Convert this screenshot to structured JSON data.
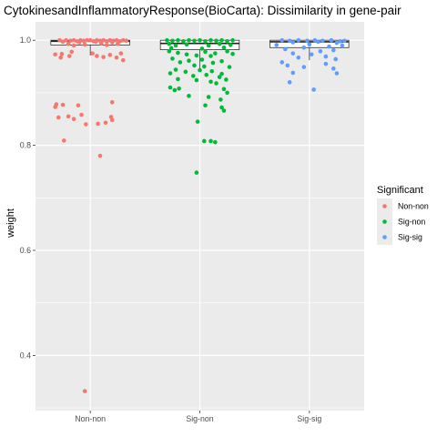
{
  "chart_data": {
    "type": "scatter",
    "title": "CytokinesandInflammatoryResponse(BioCarta): Dissimilarity in gene-pair",
    "xlabel": "",
    "ylabel": "weight",
    "categories": [
      "Non-non",
      "Sig-non",
      "Sig-sig"
    ],
    "ylim": [
      0.295,
      1.035
    ],
    "yticks": [
      0.4,
      0.6,
      0.8,
      1.0
    ],
    "ytick_labels": [
      "0.4",
      "0.6",
      "0.8",
      "1.0"
    ],
    "grid": true,
    "legend": {
      "title": "Significant",
      "placement": "right",
      "entries": [
        "Non-non",
        "Sig-non",
        "Sig-sig"
      ]
    },
    "colors": {
      "Non-non": "#F8766D",
      "Sig-non": "#00BA38",
      "Sig-sig": "#619CFF",
      "panel": "#EBEBEB",
      "grid": "#FFFFFF"
    },
    "boxplots": [
      {
        "category": "Non-non",
        "q1": 0.991,
        "median": 0.998,
        "q3": 1.0,
        "whisker_low": 0.971,
        "whisker_high": 1.0
      },
      {
        "category": "Sig-non",
        "q1": 0.982,
        "median": 0.994,
        "q3": 1.0,
        "whisker_low": 0.946,
        "whisker_high": 1.0
      },
      {
        "category": "Sig-sig",
        "q1": 0.986,
        "median": 0.997,
        "q3": 1.0,
        "whisker_low": 0.962,
        "whisker_high": 1.0
      }
    ],
    "series": [
      {
        "name": "Non-non",
        "points": [
          [
            -0.28,
            1.0
          ],
          [
            -0.22,
            1.0
          ],
          [
            -0.18,
            0.999
          ],
          [
            -0.15,
            1.0
          ],
          [
            -0.12,
            0.998
          ],
          [
            -0.09,
            1.0
          ],
          [
            -0.06,
            0.999
          ],
          [
            -0.03,
            1.0
          ],
          [
            0.0,
            1.0
          ],
          [
            0.03,
            0.998
          ],
          [
            0.06,
            1.0
          ],
          [
            0.09,
            0.999
          ],
          [
            0.12,
            1.0
          ],
          [
            0.15,
            0.998
          ],
          [
            0.18,
            1.0
          ],
          [
            0.21,
            0.999
          ],
          [
            0.24,
            1.0
          ],
          [
            0.27,
            0.998
          ],
          [
            0.3,
            1.0
          ],
          [
            0.33,
            0.999
          ],
          [
            -0.25,
            0.997
          ],
          [
            -0.1,
            0.996
          ],
          [
            0.05,
            0.997
          ],
          [
            0.2,
            0.996
          ],
          [
            -0.2,
            0.993
          ],
          [
            0.1,
            0.994
          ],
          [
            0.25,
            0.993
          ],
          [
            -0.05,
            0.992
          ],
          [
            0.15,
            0.991
          ],
          [
            -0.15,
            0.99
          ],
          [
            -0.32,
            0.973
          ],
          [
            -0.27,
            0.967
          ],
          [
            -0.26,
            0.974
          ],
          [
            -0.19,
            0.97
          ],
          [
            -0.17,
            0.978
          ],
          [
            0.02,
            0.975
          ],
          [
            0.06,
            0.97
          ],
          [
            0.12,
            0.968
          ],
          [
            0.18,
            0.972
          ],
          [
            0.24,
            0.967
          ],
          [
            0.28,
            0.975
          ],
          [
            0.3,
            0.962
          ],
          [
            -0.31,
            0.878
          ],
          [
            -0.32,
            0.873
          ],
          [
            -0.25,
            0.877
          ],
          [
            -0.11,
            0.876
          ],
          [
            -0.2,
            0.855
          ],
          [
            -0.29,
            0.853
          ],
          [
            -0.15,
            0.85
          ],
          [
            -0.08,
            0.858
          ],
          [
            -0.04,
            0.84
          ],
          [
            0.07,
            0.841
          ],
          [
            0.14,
            0.843
          ],
          [
            0.19,
            0.854
          ],
          [
            0.2,
            0.848
          ],
          [
            0.2,
            0.882
          ],
          [
            -0.24,
            0.809
          ],
          [
            0.09,
            0.78
          ],
          [
            -0.05,
            0.332
          ]
        ]
      },
      {
        "name": "Sig-non",
        "points": [
          [
            -0.3,
            1.0
          ],
          [
            -0.25,
            0.999
          ],
          [
            -0.2,
            1.0
          ],
          [
            -0.15,
            0.998
          ],
          [
            -0.1,
            1.0
          ],
          [
            -0.05,
            0.999
          ],
          [
            0.0,
            1.0
          ],
          [
            0.05,
            0.998
          ],
          [
            0.1,
            1.0
          ],
          [
            0.15,
            0.999
          ],
          [
            0.2,
            1.0
          ],
          [
            0.25,
            0.998
          ],
          [
            0.3,
            1.0
          ],
          [
            -0.28,
            0.993
          ],
          [
            -0.22,
            0.99
          ],
          [
            -0.12,
            0.992
          ],
          [
            0.08,
            0.99
          ],
          [
            0.18,
            0.993
          ],
          [
            0.28,
            0.991
          ],
          [
            -0.26,
            0.985
          ],
          [
            0.02,
            0.984
          ],
          [
            0.22,
            0.986
          ],
          [
            -0.28,
            0.979
          ],
          [
            -0.2,
            0.976
          ],
          [
            -0.12,
            0.973
          ],
          [
            0.05,
            0.978
          ],
          [
            0.14,
            0.975
          ],
          [
            0.25,
            0.979
          ],
          [
            0.3,
            0.974
          ],
          [
            -0.03,
            0.971
          ],
          [
            0.1,
            0.97
          ],
          [
            -0.25,
            0.965
          ],
          [
            -0.1,
            0.961
          ],
          [
            0.02,
            0.963
          ],
          [
            0.2,
            0.96
          ],
          [
            -0.18,
            0.958
          ],
          [
            0.12,
            0.957
          ],
          [
            -0.05,
            0.952
          ],
          [
            0.04,
            0.95
          ],
          [
            0.27,
            0.949
          ],
          [
            -0.22,
            0.944
          ],
          [
            -0.13,
            0.94
          ],
          [
            0.0,
            0.943
          ],
          [
            0.11,
            0.941
          ],
          [
            0.2,
            0.936
          ],
          [
            -0.27,
            0.937
          ],
          [
            0.06,
            0.934
          ],
          [
            -0.06,
            0.932
          ],
          [
            0.18,
            0.93
          ],
          [
            -0.2,
            0.926
          ],
          [
            -0.03,
            0.924
          ],
          [
            0.1,
            0.921
          ],
          [
            0.24,
            0.925
          ],
          [
            0.15,
            0.918
          ],
          [
            -0.27,
            0.91
          ],
          [
            -0.23,
            0.905
          ],
          [
            -0.19,
            0.908
          ],
          [
            0.22,
            0.907
          ],
          [
            0.25,
            0.9
          ],
          [
            -0.1,
            0.894
          ],
          [
            0.08,
            0.892
          ],
          [
            0.19,
            0.887
          ],
          [
            0.2,
            0.872
          ],
          [
            0.05,
            0.876
          ],
          [
            0.22,
            0.866
          ],
          [
            -0.02,
            0.845
          ],
          [
            0.1,
            0.808
          ],
          [
            0.14,
            0.806
          ],
          [
            0.04,
            0.808
          ],
          [
            -0.03,
            0.748
          ]
        ]
      },
      {
        "name": "Sig-sig",
        "points": [
          [
            -0.25,
            1.0
          ],
          [
            -0.18,
            0.999
          ],
          [
            -0.1,
            1.0
          ],
          [
            -0.02,
            0.999
          ],
          [
            0.05,
            1.0
          ],
          [
            0.12,
            0.999
          ],
          [
            0.2,
            1.0
          ],
          [
            0.28,
            0.998
          ],
          [
            0.32,
            0.999
          ],
          [
            -0.15,
            0.996
          ],
          [
            0.08,
            0.997
          ],
          [
            0.25,
            0.995
          ],
          [
            -0.3,
            0.991
          ],
          [
            0.0,
            0.992
          ],
          [
            0.3,
            0.99
          ],
          [
            -0.05,
            0.986
          ],
          [
            0.18,
            0.988
          ],
          [
            -0.22,
            0.983
          ],
          [
            0.1,
            0.979
          ],
          [
            0.22,
            0.981
          ],
          [
            -0.15,
            0.975
          ],
          [
            0.02,
            0.973
          ],
          [
            -0.1,
            0.967
          ],
          [
            0.15,
            0.969
          ],
          [
            0.24,
            0.964
          ],
          [
            -0.25,
            0.958
          ],
          [
            -0.2,
            0.952
          ],
          [
            -0.05,
            0.949
          ],
          [
            0.15,
            0.955
          ],
          [
            0.22,
            0.946
          ],
          [
            -0.15,
            0.938
          ],
          [
            0.25,
            0.937
          ],
          [
            -0.18,
            0.92
          ],
          [
            0.04,
            0.906
          ]
        ]
      }
    ]
  }
}
